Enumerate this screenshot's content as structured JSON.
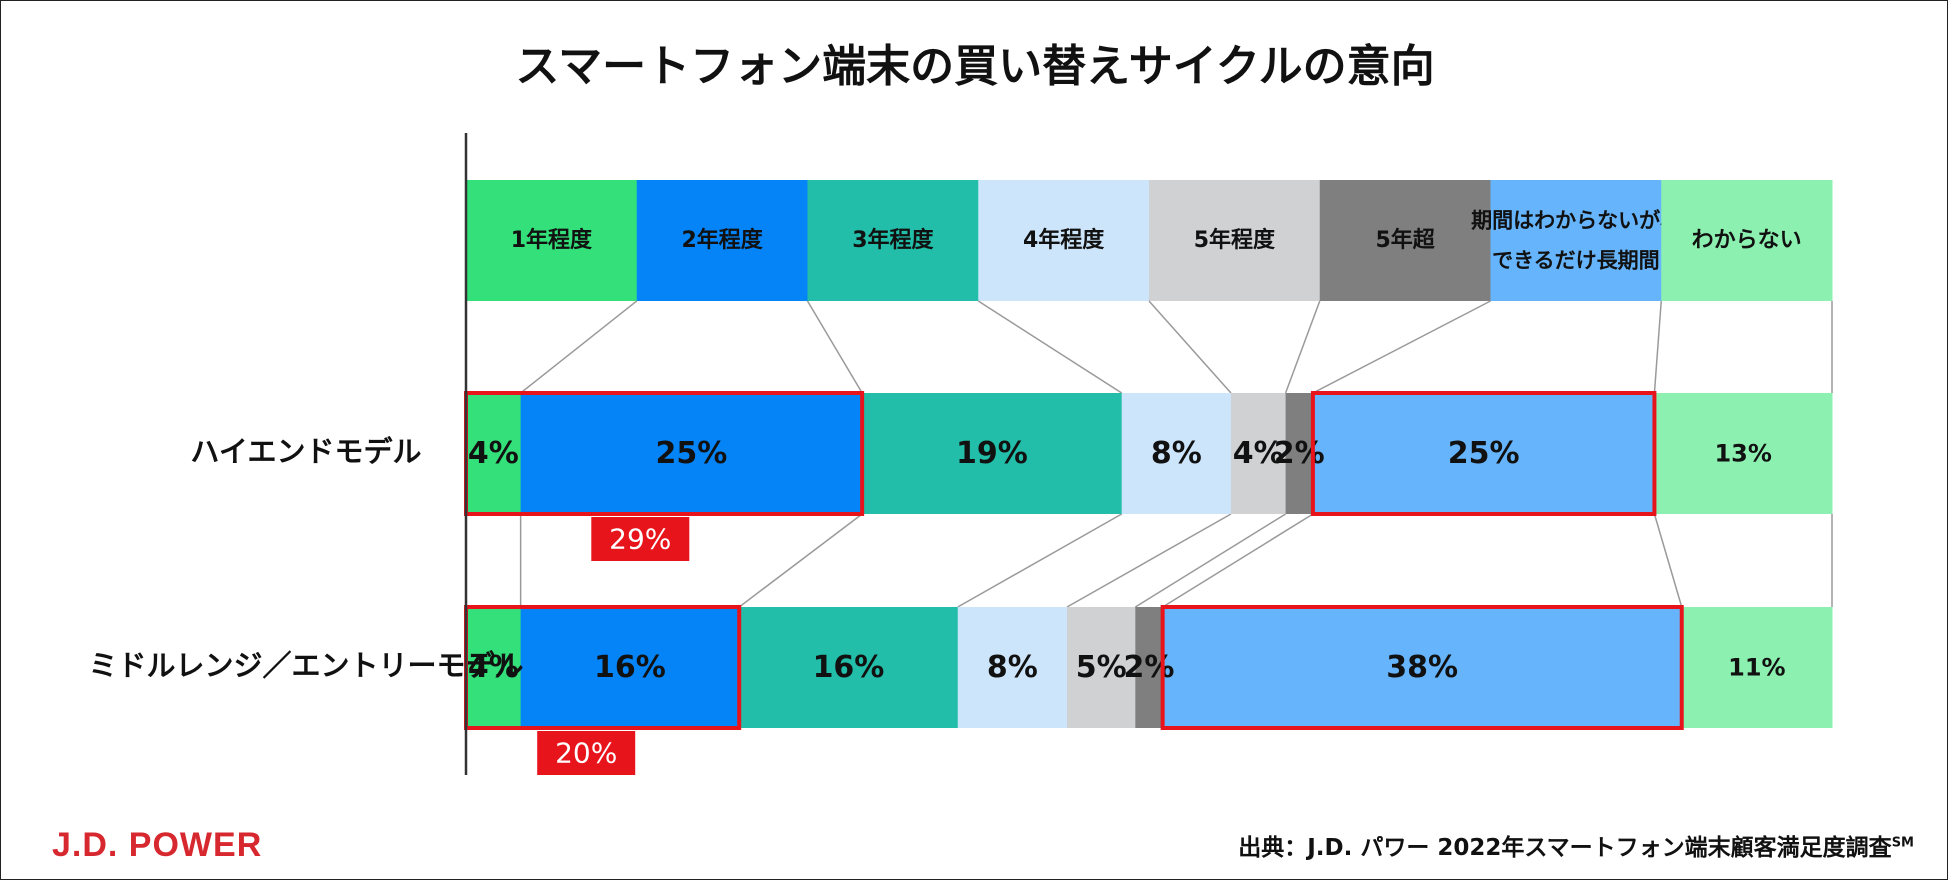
{
  "title": "スマートフォン端末の買い替えサイクルの意向",
  "source_prefix": "出典：J.D. パワー 2022年スマートフォン端末顧客満足度調査",
  "source_suffix": "SM",
  "logo": "J.D. POWER",
  "chart_data": {
    "type": "bar",
    "orientation": "horizontal",
    "stacked": "100%",
    "title": "スマートフォン端末の買い替えサイクルの意向",
    "categories": [
      "ハイエンドモデル",
      "ミドルレンジ／エントリーモデル"
    ],
    "legend_position": "top",
    "series": [
      {
        "name": "1年程度",
        "color": "#33e07a",
        "values": [
          4,
          4
        ]
      },
      {
        "name": "2年程度",
        "color": "#0584f8",
        "values": [
          25,
          16
        ]
      },
      {
        "name": "3年程度",
        "color": "#22bea9",
        "values": [
          19,
          16
        ]
      },
      {
        "name": "4年程度",
        "color": "#cde5fb",
        "values": [
          8,
          8
        ]
      },
      {
        "name": "5年程度",
        "color": "#cfd1d3",
        "values": [
          4,
          5
        ]
      },
      {
        "name": "5年超",
        "color": "#7f7f7f",
        "values": [
          2,
          2
        ]
      },
      {
        "name": "期間はわからないが、できるだけ長期間",
        "color": "#66b5fc",
        "values": [
          25,
          38
        ]
      },
      {
        "name": "わからない",
        "color": "#8cf1b0",
        "values": [
          13,
          11
        ]
      }
    ],
    "data_labels": [
      [
        "4%",
        "25%",
        "19%",
        "8%",
        "4%",
        "2%",
        "25%",
        "13%"
      ],
      [
        "4%",
        "16%",
        "16%",
        "8%",
        "5%",
        "2%",
        "38%",
        "11%"
      ]
    ],
    "highlight_sums": [
      "29%",
      "20%"
    ],
    "highlight_color": "#e8141c"
  }
}
